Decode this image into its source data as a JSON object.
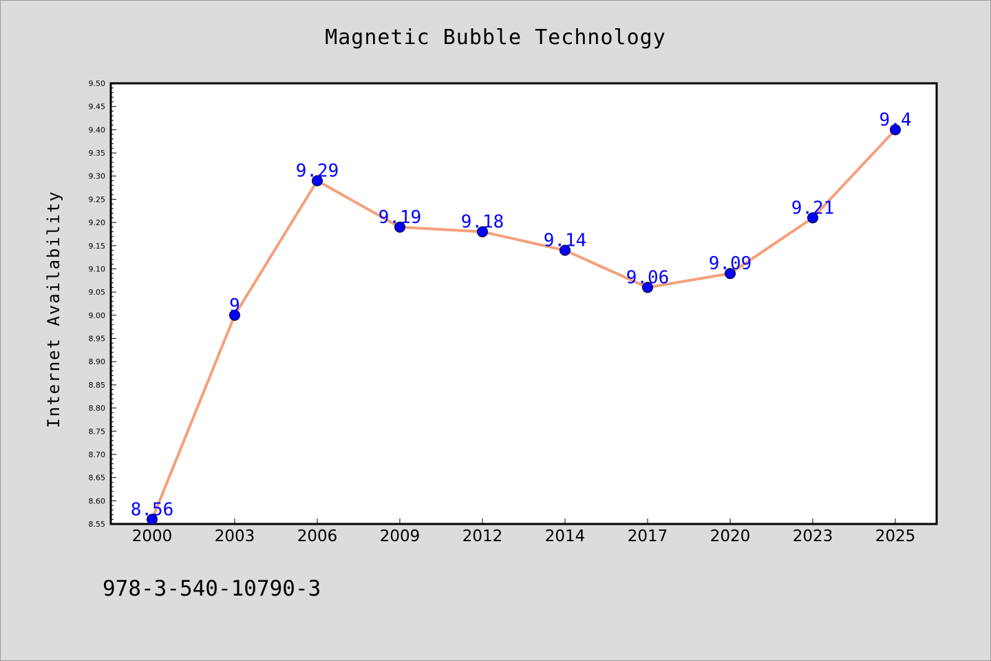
{
  "chart_data": {
    "type": "line",
    "title": "Magnetic Bubble Technology",
    "xlabel": "",
    "ylabel": "Internet Availability",
    "categories": [
      "2000",
      "2003",
      "2006",
      "2009",
      "2012",
      "2014",
      "2017",
      "2020",
      "2023",
      "2025"
    ],
    "series": [
      {
        "values": [
          8.56,
          9.0,
          9.29,
          9.19,
          9.18,
          9.14,
          9.06,
          9.09,
          9.21,
          9.4
        ],
        "labels": [
          "8.56",
          "9",
          "9.29",
          "9.19",
          "9.18",
          "9.14",
          "9.06",
          "9.09",
          "9.21",
          "9.4"
        ],
        "line_color": "#f4a07c",
        "marker_color": "#0000ff",
        "label_color": "#0000ff"
      }
    ],
    "ylim": [
      8.55,
      9.5
    ],
    "yticks": [
      "8.55",
      "8.60",
      "8.65",
      "8.70",
      "8.75",
      "8.80",
      "8.85",
      "8.90",
      "8.95",
      "9.00",
      "9.05",
      "9.10",
      "9.15",
      "9.20",
      "9.25",
      "9.30",
      "9.35",
      "9.40",
      "9.45",
      "9.50"
    ],
    "grid": false,
    "legend": "none"
  },
  "footer": {
    "isbn": "978-3-540-10790-3"
  },
  "colors": {
    "background": "#dcdcdc",
    "plot_background": "#ffffff",
    "line": "#f4a07c",
    "marker": "#0000ff",
    "label": "#0000ff"
  }
}
